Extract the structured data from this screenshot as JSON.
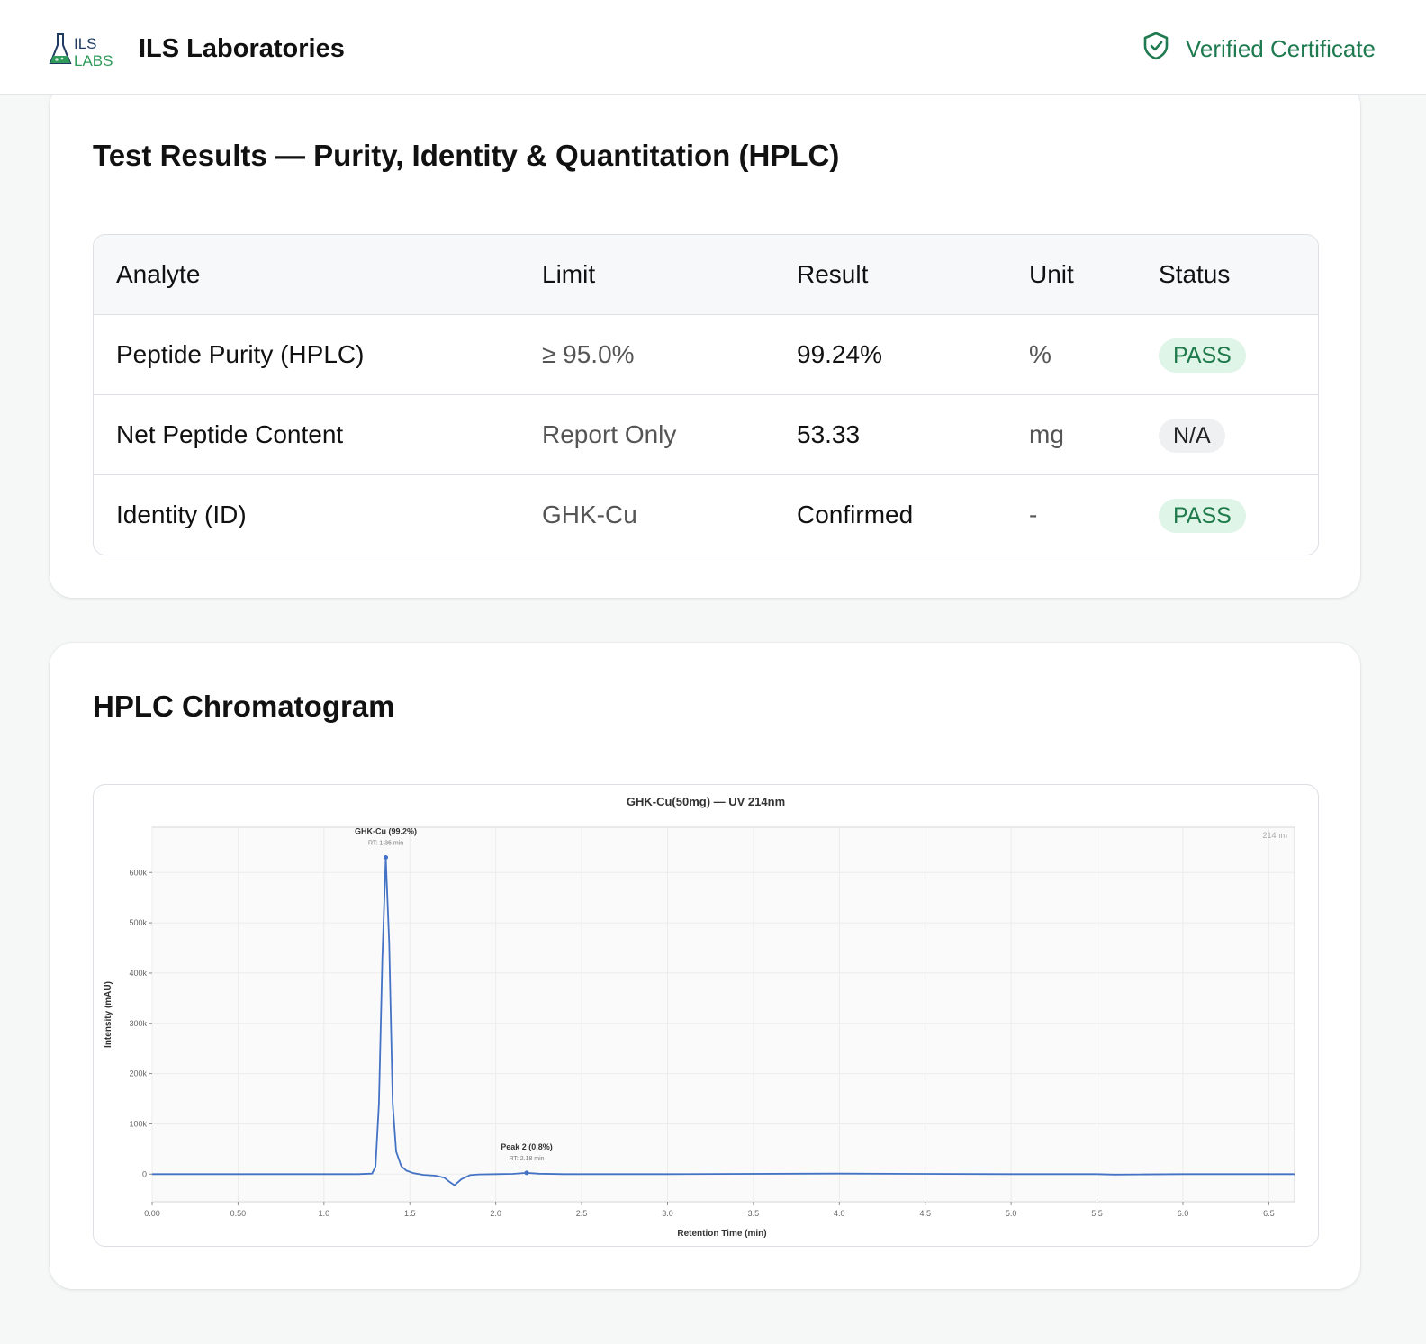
{
  "header": {
    "logo_text": "ILS LABS",
    "brand_name": "ILS Laboratories",
    "verified_label": "Verified Certificate",
    "verified_color": "#1f7a50"
  },
  "results": {
    "title": "Test Results — Purity, Identity & Quantitation (HPLC)",
    "columns": [
      "Analyte",
      "Limit",
      "Result",
      "Unit",
      "Status"
    ],
    "rows": [
      {
        "analyte": "Peptide Purity (HPLC)",
        "limit": "≥ 95.0%",
        "result": "99.24%",
        "unit": "%",
        "status": "PASS"
      },
      {
        "analyte": "Net Peptide Content",
        "limit": "Report Only",
        "result": "53.33",
        "unit": "mg",
        "status": "N/A"
      },
      {
        "analyte": "Identity (ID)",
        "limit": "GHK-Cu",
        "result": "Confirmed",
        "unit": "-",
        "status": "PASS"
      }
    ]
  },
  "chromatogram": {
    "title": "HPLC Chromatogram"
  },
  "chart_data": {
    "type": "line",
    "title": "GHK-Cu(50mg) — UV 214nm",
    "xlabel": "Retention Time (min)",
    "ylabel": "Intensity (mAU)",
    "corner_label": "214nm",
    "xlim": [
      0,
      6.65
    ],
    "ylim": [
      -55000,
      690000
    ],
    "x_ticks": [
      0,
      0.5,
      1.0,
      1.5,
      2.0,
      2.5,
      3.0,
      3.5,
      4.0,
      4.5,
      5.0,
      5.5,
      6.0,
      6.5
    ],
    "x_tick_labels": [
      "0.00",
      "0.50",
      "1.0",
      "1.5",
      "2.0",
      "2.5",
      "3.0",
      "3.5",
      "4.0",
      "4.5",
      "5.0",
      "5.5",
      "6.0",
      "6.5"
    ],
    "y_ticks": [
      0,
      100000,
      200000,
      300000,
      400000,
      500000,
      600000
    ],
    "y_tick_labels": [
      "0",
      "100k",
      "200k",
      "300k",
      "400k",
      "500k",
      "600k"
    ],
    "grid": true,
    "line_color": "#4472c4",
    "series": [
      {
        "x": [
          0.0,
          0.5,
          1.0,
          1.2,
          1.28,
          1.3,
          1.32,
          1.34,
          1.36,
          1.38,
          1.4,
          1.42,
          1.45,
          1.48,
          1.52,
          1.58,
          1.65,
          1.7,
          1.73,
          1.76,
          1.8,
          1.85,
          1.9,
          2.0,
          2.1,
          2.18,
          2.25,
          2.4,
          3.0,
          4.0,
          5.0,
          5.5,
          5.6,
          5.75,
          6.0,
          6.65
        ],
        "y": [
          0,
          0,
          0,
          0,
          1000,
          15000,
          140000,
          430000,
          630000,
          460000,
          140000,
          45000,
          16000,
          7000,
          2000,
          -1500,
          -3000,
          -7000,
          -15000,
          -22000,
          -10000,
          -2000,
          -500,
          0,
          500,
          2500,
          900,
          0,
          0,
          1000,
          0,
          0,
          -1000,
          -500,
          0,
          0
        ]
      }
    ],
    "annotations": [
      {
        "x": 1.36,
        "y": 630000,
        "label": "GHK-Cu (99.2%)",
        "sublabel": "RT: 1.36 min"
      },
      {
        "x": 2.18,
        "y": 2500,
        "label": "Peak 2 (0.8%)",
        "sublabel": "RT: 2.18 min"
      }
    ]
  }
}
